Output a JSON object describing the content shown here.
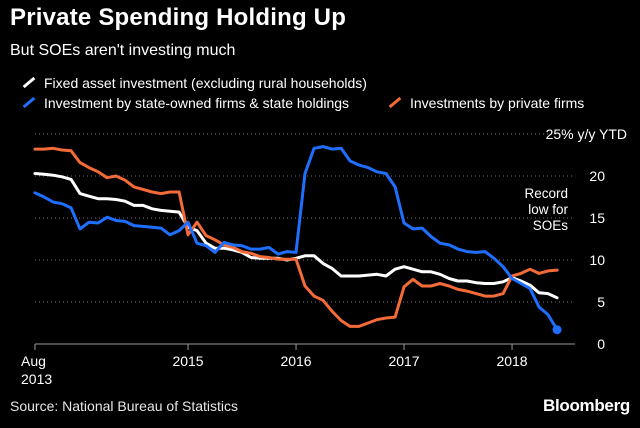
{
  "header": {
    "title": "Private Spending Holding Up",
    "subtitle": "But SOEs aren't investing much"
  },
  "footer": {
    "source": "Source: National Bureau of Statistics",
    "brand": "Bloomberg"
  },
  "chart_data": {
    "type": "line",
    "title": "Private Spending Holding Up",
    "subtitle": "But SOEs aren't investing much",
    "ylabel": "25% y/y YTD",
    "ylim": [
      0,
      25
    ],
    "yticks": [
      0,
      5,
      10,
      15,
      20
    ],
    "ytick_labels": [
      "0",
      "5",
      "10",
      "15",
      "20"
    ],
    "top_tick_label": "25% y/y YTD",
    "xlim": [
      2013.583,
      2018.583
    ],
    "xticks": [
      {
        "value": 2013.583,
        "label": "Aug",
        "sublabel": "2013"
      },
      {
        "value": 2015.0,
        "label": "2015"
      },
      {
        "value": 2016.0,
        "label": "2016"
      },
      {
        "value": 2017.0,
        "label": "2017"
      },
      {
        "value": 2018.0,
        "label": "2018"
      }
    ],
    "grid": "horizontal",
    "annotation": {
      "text": [
        "Record",
        "low for",
        "SOEs"
      ],
      "x": 2018.55,
      "y": 1.7
    },
    "series": [
      {
        "name": "Fixed asset investment (excluding rural households)",
        "color": "#ffffff",
        "points": [
          [
            2013.583,
            20.3
          ],
          [
            2013.667,
            20.2
          ],
          [
            2013.75,
            20.1
          ],
          [
            2013.833,
            19.9
          ],
          [
            2013.917,
            19.6
          ],
          [
            2014.0,
            17.9
          ],
          [
            2014.083,
            17.6
          ],
          [
            2014.167,
            17.3
          ],
          [
            2014.25,
            17.3
          ],
          [
            2014.333,
            17.2
          ],
          [
            2014.417,
            17.0
          ],
          [
            2014.5,
            16.5
          ],
          [
            2014.583,
            16.5
          ],
          [
            2014.667,
            16.1
          ],
          [
            2014.75,
            15.9
          ],
          [
            2014.833,
            15.8
          ],
          [
            2014.917,
            15.7
          ],
          [
            2015.0,
            13.9
          ],
          [
            2015.083,
            13.5
          ],
          [
            2015.167,
            12.0
          ],
          [
            2015.25,
            11.4
          ],
          [
            2015.333,
            11.4
          ],
          [
            2015.417,
            11.2
          ],
          [
            2015.5,
            10.9
          ],
          [
            2015.583,
            10.3
          ],
          [
            2015.667,
            10.2
          ],
          [
            2015.75,
            10.2
          ],
          [
            2015.833,
            10.2
          ],
          [
            2015.917,
            10.0
          ],
          [
            2016.0,
            10.2
          ],
          [
            2016.083,
            10.5
          ],
          [
            2016.167,
            10.5
          ],
          [
            2016.25,
            9.6
          ],
          [
            2016.333,
            9.0
          ],
          [
            2016.417,
            8.1
          ],
          [
            2016.5,
            8.1
          ],
          [
            2016.583,
            8.1
          ],
          [
            2016.667,
            8.2
          ],
          [
            2016.75,
            8.3
          ],
          [
            2016.833,
            8.1
          ],
          [
            2016.917,
            8.9
          ],
          [
            2017.0,
            9.2
          ],
          [
            2017.083,
            8.9
          ],
          [
            2017.167,
            8.6
          ],
          [
            2017.25,
            8.6
          ],
          [
            2017.333,
            8.3
          ],
          [
            2017.417,
            7.8
          ],
          [
            2017.5,
            7.5
          ],
          [
            2017.583,
            7.5
          ],
          [
            2017.667,
            7.3
          ],
          [
            2017.75,
            7.2
          ],
          [
            2017.833,
            7.2
          ],
          [
            2017.917,
            7.4
          ],
          [
            2018.0,
            7.9
          ],
          [
            2018.083,
            7.5
          ],
          [
            2018.167,
            7.0
          ],
          [
            2018.25,
            6.1
          ],
          [
            2018.333,
            6.0
          ],
          [
            2018.417,
            5.5
          ]
        ]
      },
      {
        "name": "Investment by state-owned firms & state holdings",
        "color": "#1f6fff",
        "points": [
          [
            2013.583,
            18.0
          ],
          [
            2013.667,
            17.5
          ],
          [
            2013.75,
            16.9
          ],
          [
            2013.833,
            16.7
          ],
          [
            2013.917,
            16.2
          ],
          [
            2014.0,
            13.7
          ],
          [
            2014.083,
            14.5
          ],
          [
            2014.167,
            14.4
          ],
          [
            2014.25,
            15.1
          ],
          [
            2014.333,
            14.7
          ],
          [
            2014.417,
            14.6
          ],
          [
            2014.5,
            14.1
          ],
          [
            2014.583,
            14.0
          ],
          [
            2014.667,
            13.9
          ],
          [
            2014.75,
            13.8
          ],
          [
            2014.833,
            13.0
          ],
          [
            2014.917,
            13.5
          ],
          [
            2015.0,
            14.5
          ],
          [
            2015.083,
            12.0
          ],
          [
            2015.167,
            11.7
          ],
          [
            2015.25,
            10.9
          ],
          [
            2015.333,
            12.1
          ],
          [
            2015.417,
            11.8
          ],
          [
            2015.5,
            11.7
          ],
          [
            2015.583,
            11.3
          ],
          [
            2015.667,
            11.3
          ],
          [
            2015.75,
            11.5
          ],
          [
            2015.833,
            10.7
          ],
          [
            2015.917,
            11.0
          ],
          [
            2016.0,
            10.9
          ],
          [
            2016.083,
            20.3
          ],
          [
            2016.167,
            23.3
          ],
          [
            2016.25,
            23.5
          ],
          [
            2016.333,
            23.2
          ],
          [
            2016.417,
            23.3
          ],
          [
            2016.5,
            21.8
          ],
          [
            2016.583,
            21.3
          ],
          [
            2016.667,
            21.0
          ],
          [
            2016.75,
            20.5
          ],
          [
            2016.833,
            20.3
          ],
          [
            2016.917,
            18.7
          ],
          [
            2017.0,
            14.4
          ],
          [
            2017.083,
            13.7
          ],
          [
            2017.167,
            13.8
          ],
          [
            2017.25,
            12.8
          ],
          [
            2017.333,
            12.0
          ],
          [
            2017.417,
            11.8
          ],
          [
            2017.5,
            11.3
          ],
          [
            2017.583,
            11.0
          ],
          [
            2017.667,
            10.9
          ],
          [
            2017.75,
            11.0
          ],
          [
            2017.833,
            10.2
          ],
          [
            2017.917,
            9.2
          ],
          [
            2018.0,
            7.8
          ],
          [
            2018.083,
            7.2
          ],
          [
            2018.167,
            6.6
          ],
          [
            2018.25,
            4.4
          ],
          [
            2018.333,
            3.5
          ],
          [
            2018.417,
            1.7
          ]
        ]
      },
      {
        "name": "Investments by private firms",
        "color": "#f26b38",
        "points": [
          [
            2013.583,
            23.2
          ],
          [
            2013.667,
            23.2
          ],
          [
            2013.75,
            23.3
          ],
          [
            2013.833,
            23.1
          ],
          [
            2013.917,
            23.0
          ],
          [
            2014.0,
            21.6
          ],
          [
            2014.083,
            21.0
          ],
          [
            2014.167,
            20.5
          ],
          [
            2014.25,
            19.8
          ],
          [
            2014.333,
            20.0
          ],
          [
            2014.417,
            19.5
          ],
          [
            2014.5,
            18.7
          ],
          [
            2014.583,
            18.4
          ],
          [
            2014.667,
            18.1
          ],
          [
            2014.75,
            17.9
          ],
          [
            2014.833,
            18.1
          ],
          [
            2014.917,
            18.1
          ],
          [
            2015.0,
            13.0
          ],
          [
            2015.083,
            14.5
          ],
          [
            2015.167,
            12.9
          ],
          [
            2015.25,
            12.4
          ],
          [
            2015.333,
            11.8
          ],
          [
            2015.417,
            11.5
          ],
          [
            2015.5,
            11.0
          ],
          [
            2015.583,
            10.8
          ],
          [
            2015.667,
            10.4
          ],
          [
            2015.75,
            10.3
          ],
          [
            2015.833,
            10.1
          ],
          [
            2015.917,
            10.1
          ],
          [
            2016.0,
            10.1
          ],
          [
            2016.083,
            6.9
          ],
          [
            2016.167,
            5.7
          ],
          [
            2016.25,
            5.2
          ],
          [
            2016.333,
            3.9
          ],
          [
            2016.417,
            2.8
          ],
          [
            2016.5,
            2.1
          ],
          [
            2016.583,
            2.1
          ],
          [
            2016.667,
            2.5
          ],
          [
            2016.75,
            2.9
          ],
          [
            2016.833,
            3.1
          ],
          [
            2016.917,
            3.2
          ],
          [
            2017.0,
            6.8
          ],
          [
            2017.083,
            7.7
          ],
          [
            2017.167,
            6.9
          ],
          [
            2017.25,
            6.9
          ],
          [
            2017.333,
            7.2
          ],
          [
            2017.417,
            6.9
          ],
          [
            2017.5,
            6.5
          ],
          [
            2017.583,
            6.3
          ],
          [
            2017.667,
            6.0
          ],
          [
            2017.75,
            5.7
          ],
          [
            2017.833,
            5.7
          ],
          [
            2017.917,
            6.0
          ],
          [
            2018.0,
            8.1
          ],
          [
            2018.083,
            8.4
          ],
          [
            2018.167,
            8.9
          ],
          [
            2018.25,
            8.4
          ],
          [
            2018.333,
            8.7
          ],
          [
            2018.417,
            8.8
          ]
        ]
      }
    ]
  }
}
